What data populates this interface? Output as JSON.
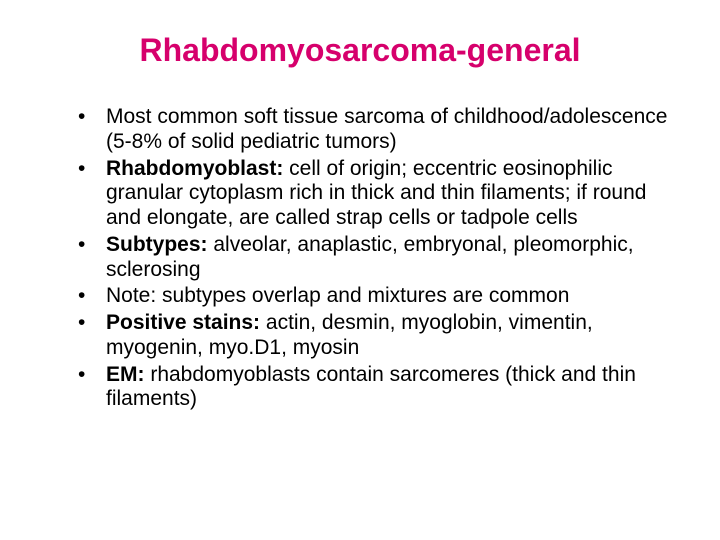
{
  "title": "Rhabdomyosarcoma-general",
  "title_color": "#d6006c",
  "title_fontsize": 32,
  "body_color": "#000000",
  "body_fontsize": 21,
  "line_height": 1.18,
  "background_color": "#ffffff",
  "bullets": [
    {
      "bold": "",
      "rest": "Most common soft tissue sarcoma of childhood/adolescence (5-8% of solid pediatric tumors)"
    },
    {
      "bold": "Rhabdomyoblast:",
      "rest": " cell of origin; eccentric eosinophilic granular cytoplasm rich in thick and thin filaments; if round and elongate, are called strap cells or tadpole cells"
    },
    {
      "bold": "Subtypes:",
      "rest": " alveolar, anaplastic, embryonal, pleomorphic, sclerosing"
    },
    {
      "bold": "",
      "rest": "Note: subtypes overlap and mixtures are common"
    },
    {
      "bold": "Positive stains:",
      "rest": " actin, desmin, myoglobin, vimentin, myogenin, myo.D1, myosin"
    },
    {
      "bold": "EM:",
      "rest": " rhabdomyoblasts contain sarcomeres (thick and thin filaments)"
    }
  ]
}
